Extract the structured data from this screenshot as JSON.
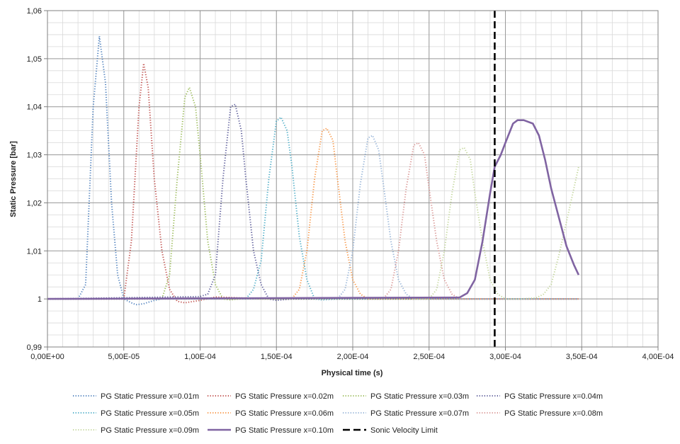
{
  "chart_data": {
    "type": "line",
    "title": "",
    "xlabel": "Physical time (s)",
    "ylabel": "Static Pressure  [bar]",
    "xlim": [
      0,
      0.0004
    ],
    "ylim": [
      0.99,
      1.06
    ],
    "grid": true,
    "legend_position": "bottom",
    "x_tick_labels": [
      "0,00E+00",
      "5,00E-05",
      "1,00E-04",
      "1,50E-04",
      "2,00E-04",
      "2,50E-04",
      "3,00E-04",
      "3,50E-04",
      "4,00E-04"
    ],
    "y_tick_labels": [
      "0,99",
      "1",
      "1,01",
      "1,02",
      "1,03",
      "1,04",
      "1,05",
      "1,06"
    ],
    "series": [
      {
        "name": "PG Static Pressure x=0.01m",
        "color": "#4f81bd",
        "style": "dotted",
        "x": [
          0,
          2e-05,
          2.5e-05,
          3e-05,
          3.4e-05,
          3.8e-05,
          4.2e-05,
          4.6e-05,
          5e-05,
          5.5e-05,
          5.8e-05,
          6.3e-05,
          7e-05,
          7.5e-05,
          8e-05,
          9e-05,
          0.0001,
          0.00012,
          0.00014,
          0.0002,
          0.000348
        ],
        "y": [
          1.0,
          1.0,
          1.003,
          1.04,
          1.0547,
          1.045,
          1.02,
          1.005,
          1.0,
          0.9992,
          0.9988,
          0.999,
          0.9997,
          1.0,
          1.0,
          1.0,
          1.0,
          1.0,
          1.0,
          1.0,
          1.0
        ]
      },
      {
        "name": "PG Static Pressure x=0.02m",
        "color": "#c0504d",
        "style": "dotted",
        "x": [
          0,
          5e-05,
          5.5e-05,
          6e-05,
          6.3e-05,
          6.6e-05,
          7e-05,
          7.5e-05,
          8e-05,
          8.5e-05,
          9e-05,
          0.0001,
          0.00011,
          0.00012,
          0.00014,
          0.0002,
          0.000348
        ],
        "y": [
          1.0,
          1.0,
          1.012,
          1.04,
          1.049,
          1.044,
          1.025,
          1.01,
          1.002,
          0.9995,
          0.9992,
          0.9997,
          1.0004,
          1.0003,
          1.0,
          1.0,
          1.0
        ]
      },
      {
        "name": "PG Static Pressure x=0.03m",
        "color": "#9bbb59",
        "style": "dotted",
        "x": [
          0,
          7.5e-05,
          8e-05,
          8.5e-05,
          9e-05,
          9.3e-05,
          9.7e-05,
          0.0001,
          0.000105,
          0.00011,
          0.000115,
          0.00012,
          0.00013,
          0.00014,
          0.000348
        ],
        "y": [
          1.0,
          1.0,
          1.005,
          1.025,
          1.042,
          1.044,
          1.04,
          1.03,
          1.012,
          1.003,
          1.0,
          0.9998,
          1.0002,
          1.0,
          1.0
        ]
      },
      {
        "name": "PG Static Pressure x=0.04m",
        "color": "#5b5b99",
        "style": "dotted",
        "x": [
          0,
          0.0001,
          0.000105,
          0.00011,
          0.000115,
          0.00012,
          0.000123,
          0.000127,
          0.00013,
          0.000135,
          0.00014,
          0.000145,
          0.00015,
          0.00016,
          0.000348
        ],
        "y": [
          1.0,
          1.0005,
          1.001,
          1.005,
          1.025,
          1.04,
          1.0405,
          1.035,
          1.025,
          1.01,
          1.003,
          1.0,
          0.9997,
          1.0,
          1.0
        ]
      },
      {
        "name": "PG Static Pressure x=0.05m",
        "color": "#4bacc6",
        "style": "dotted",
        "x": [
          0,
          0.00013,
          0.000135,
          0.00014,
          0.000145,
          0.00015,
          0.000153,
          0.000157,
          0.00016,
          0.000165,
          0.00017,
          0.000175,
          0.00018,
          0.00019,
          0.000348
        ],
        "y": [
          1.0,
          1.0,
          1.002,
          1.008,
          1.025,
          1.037,
          1.0378,
          1.035,
          1.028,
          1.013,
          1.004,
          1.0,
          0.9998,
          1.0,
          1.0
        ]
      },
      {
        "name": "PG Static Pressure x=0.06m",
        "color": "#f79646",
        "style": "dotted",
        "x": [
          0,
          0.00016,
          0.000165,
          0.00017,
          0.000175,
          0.00018,
          0.000183,
          0.000187,
          0.00019,
          0.000195,
          0.0002,
          0.000205,
          0.00021,
          0.00022,
          0.000348
        ],
        "y": [
          1.0,
          1.0,
          1.002,
          1.01,
          1.025,
          1.035,
          1.0355,
          1.033,
          1.025,
          1.012,
          1.004,
          1.001,
          1.0,
          1.0,
          1.0
        ]
      },
      {
        "name": "PG Static Pressure x=0.07m",
        "color": "#95b3d7",
        "style": "dotted",
        "x": [
          0,
          0.00019,
          0.000195,
          0.0002,
          0.000205,
          0.00021,
          0.000213,
          0.000217,
          0.00022,
          0.000225,
          0.00023,
          0.000235,
          0.00024,
          0.00025,
          0.000348
        ],
        "y": [
          1.0,
          1.0,
          1.002,
          1.01,
          1.024,
          1.0335,
          1.034,
          1.031,
          1.024,
          1.012,
          1.004,
          1.001,
          1.0,
          1.0,
          1.0
        ]
      },
      {
        "name": "PG Static Pressure x=0.08m",
        "color": "#d99694",
        "style": "dotted",
        "x": [
          0,
          0.00022,
          0.000225,
          0.00023,
          0.000235,
          0.00024,
          0.000243,
          0.000247,
          0.00025,
          0.000255,
          0.00026,
          0.000265,
          0.00027,
          0.00028,
          0.000348
        ],
        "y": [
          1.0,
          1.0,
          1.002,
          1.01,
          1.023,
          1.032,
          1.0325,
          1.03,
          1.023,
          1.012,
          1.004,
          1.001,
          1.0,
          1.0,
          1.0
        ]
      },
      {
        "name": "PG Static Pressure x=0.09m",
        "color": "#c3d69b",
        "style": "dotted",
        "x": [
          0,
          0.00025,
          0.000255,
          0.00026,
          0.000265,
          0.00027,
          0.000273,
          0.000277,
          0.00028,
          0.000285,
          0.00029,
          0.000295,
          0.0003,
          0.00031,
          0.00032,
          0.000325,
          0.00033,
          0.000335,
          0.00034,
          0.000348
        ],
        "y": [
          1.0,
          1.0,
          1.002,
          1.01,
          1.022,
          1.031,
          1.0315,
          1.029,
          1.022,
          1.012,
          1.004,
          1.001,
          1.0,
          1.0,
          1.0002,
          1.001,
          1.003,
          1.009,
          1.016,
          1.0275
        ]
      },
      {
        "name": "PG Static Pressure x=0.10m",
        "color": "#8064a2",
        "style": "solid",
        "x": [
          0,
          0.00027,
          0.000275,
          0.00028,
          0.000285,
          0.00029,
          0.000293,
          0.000297,
          0.0003,
          0.000305,
          0.000308,
          0.000312,
          0.000318,
          0.000322,
          0.000326,
          0.00033,
          0.000335,
          0.00034,
          0.000345,
          0.000348
        ],
        "y": [
          1.0,
          1.0003,
          1.0012,
          1.004,
          1.012,
          1.022,
          1.0275,
          1.03,
          1.0325,
          1.0365,
          1.0372,
          1.0372,
          1.0365,
          1.034,
          1.029,
          1.023,
          1.017,
          1.011,
          1.007,
          1.005
        ]
      },
      {
        "name": "Sonic Velocity Limit",
        "color": "#000000",
        "style": "dashed",
        "x": [
          0.000293,
          0.000293
        ],
        "y": [
          0.99,
          1.06
        ]
      }
    ]
  }
}
